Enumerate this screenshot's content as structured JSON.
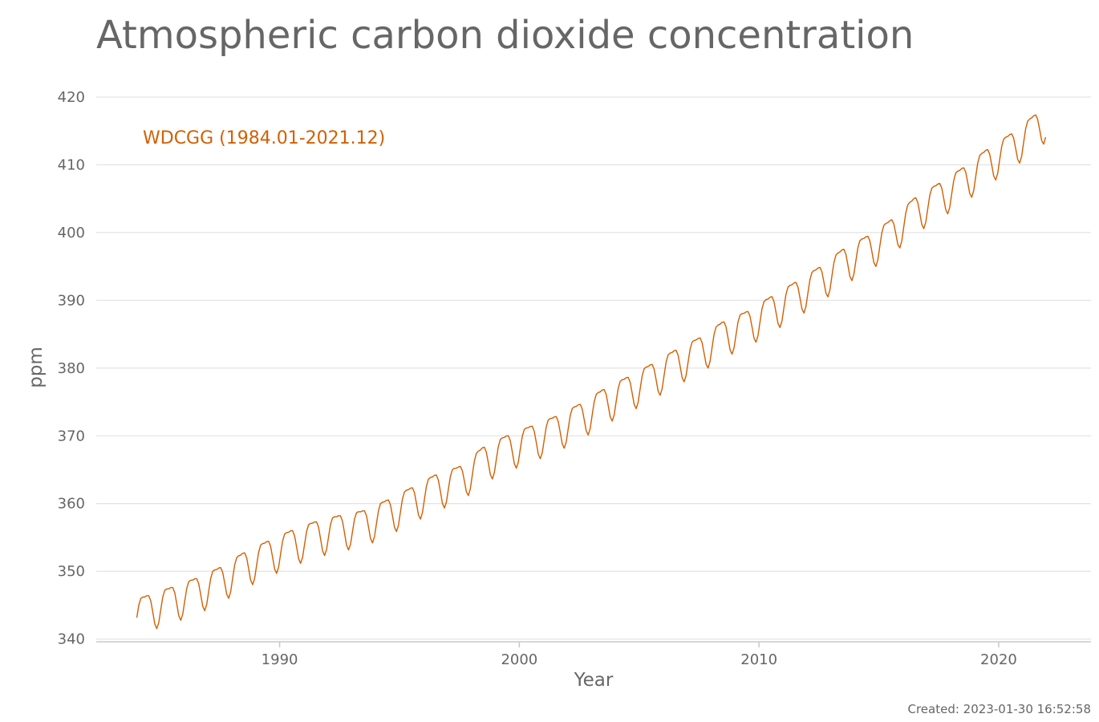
{
  "chart_data": {
    "type": "line",
    "title": "Atmospheric carbon dioxide concentration",
    "xlabel": "Year",
    "ylabel": "ppm",
    "xlim": [
      1982.35,
      2023.85
    ],
    "ylim": [
      339.6,
      421.3
    ],
    "x_ticks": [
      1990,
      2000,
      2010,
      2020
    ],
    "y_ticks": [
      340,
      350,
      360,
      370,
      380,
      390,
      400,
      410,
      420
    ],
    "grid": "horizontal",
    "legend_position": "top-left",
    "colors": {
      "series": "#d45f00",
      "text": "#666666",
      "grid": "#e4e4e4",
      "axis": "#c8c8c8"
    },
    "series": [
      {
        "name": "WDCGG (1984.01-2021.12)",
        "start_year": 1984,
        "end_year": 2021,
        "annual_mean_ppm": [
          344.6,
          345.8,
          347.1,
          348.7,
          350.9,
          352.6,
          354.2,
          355.5,
          356.4,
          357.1,
          358.7,
          360.5,
          362.4,
          363.6,
          366.5,
          368.2,
          369.6,
          371.0,
          372.8,
          375.0,
          376.8,
          378.7,
          380.8,
          382.6,
          385.0,
          386.5,
          388.7,
          390.8,
          393.0,
          395.7,
          397.6,
          400.0,
          403.3,
          405.4,
          407.7,
          410.4,
          412.7,
          415.5
        ],
        "seasonal_amplitude_ppm": 3.1,
        "seasonal_peak_month": "May",
        "seasonal_trough_month": "September"
      }
    ]
  },
  "footer": {
    "created": "Created: 2023-01-30 16:52:58"
  }
}
